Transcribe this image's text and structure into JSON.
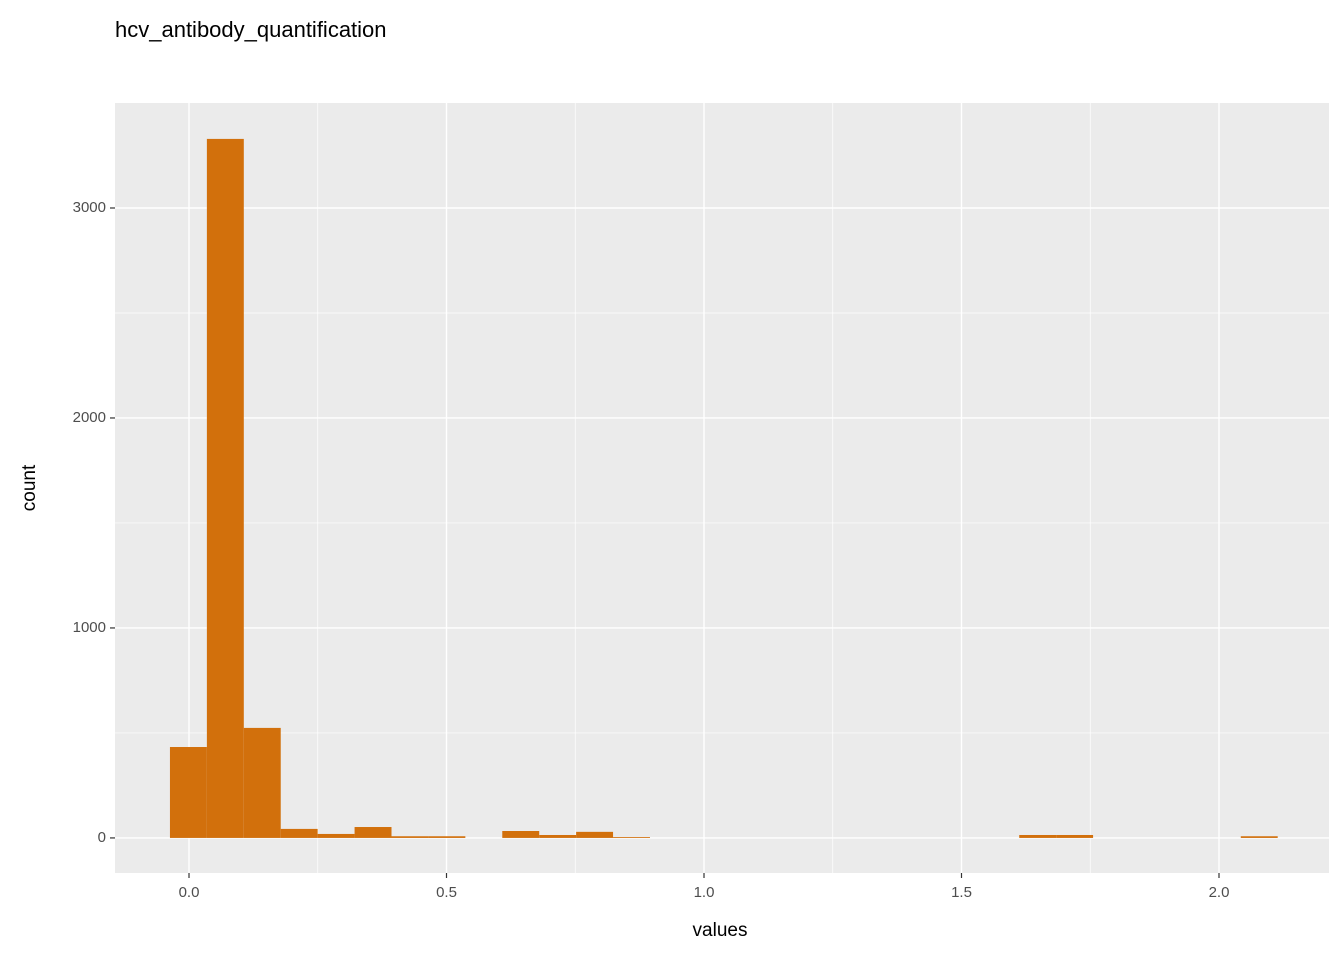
{
  "chart_data": {
    "type": "histogram",
    "title": "hcv_antibody_quantification",
    "x_label": "values",
    "y_label": "count",
    "bins": [
      -0.037,
      0.0347,
      0.1064,
      0.1781,
      0.2498,
      0.3215,
      0.3932,
      0.4649,
      0.5366,
      0.6083,
      0.68,
      0.7517,
      0.8234,
      0.8951,
      0.9668,
      1.0385,
      1.1102,
      1.1819,
      1.2536,
      1.3253,
      1.397,
      1.4687,
      1.5404,
      1.6121,
      1.6838,
      1.7555,
      1.8272,
      1.8989,
      1.9706,
      2.0423,
      2.114
    ],
    "values": [
      433,
      3329,
      524,
      43,
      19,
      52,
      8,
      8,
      0,
      33,
      14,
      29,
      4,
      0,
      0,
      0,
      0,
      0,
      0,
      0,
      0,
      0,
      0,
      14,
      14,
      0,
      0,
      0,
      0,
      8
    ],
    "color": "#d2700c",
    "xlim": [
      -0.1437,
      2.2136
    ],
    "ylim": [
      -167,
      3500
    ],
    "xticks": [
      {
        "value": 0,
        "label": "0.0"
      },
      0.5,
      {
        "value": 1,
        "label": "1.0"
      },
      1.5,
      {
        "value": 2,
        "label": "2.0"
      }
    ],
    "yticks": [
      0,
      1000,
      2000,
      3000
    ],
    "x_minor_ticks": [
      0.25,
      0.75,
      1.25,
      1.75
    ],
    "y_minor_ticks": [
      500,
      1500,
      2500
    ],
    "grid": true
  }
}
